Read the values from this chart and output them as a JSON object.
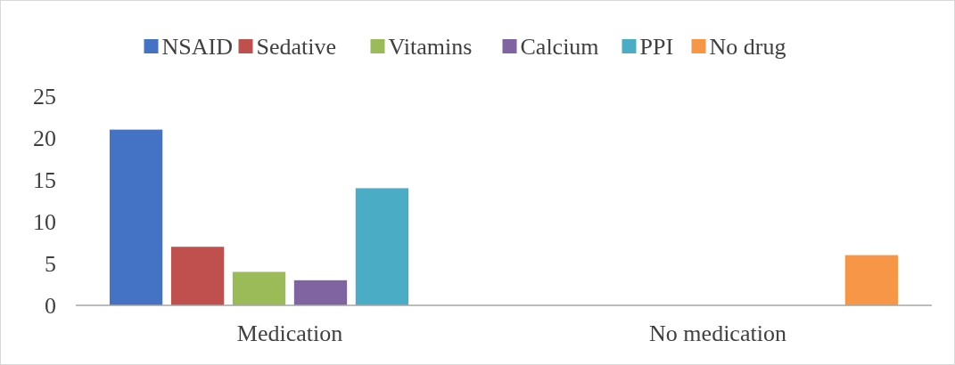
{
  "chart_data": {
    "type": "bar",
    "categories": [
      "Medication",
      "No medication"
    ],
    "series": [
      {
        "name": "NSAID",
        "color": "#4472c4",
        "values": [
          21,
          null
        ]
      },
      {
        "name": "Sedative",
        "color": "#c0504d",
        "values": [
          7,
          null
        ]
      },
      {
        "name": "Vitamins",
        "color": "#9bbb59",
        "values": [
          4,
          null
        ]
      },
      {
        "name": "Calcium",
        "color": "#8064a2",
        "values": [
          3,
          null
        ]
      },
      {
        "name": "PPI",
        "color": "#4bacc6",
        "values": [
          14,
          null
        ]
      },
      {
        "name": "No drug",
        "color": "#f79646",
        "values": [
          null,
          6
        ]
      }
    ],
    "ylim": [
      0,
      25
    ],
    "yticks": [
      0,
      5,
      10,
      15,
      20,
      25
    ],
    "grid": false,
    "legend": "top"
  }
}
